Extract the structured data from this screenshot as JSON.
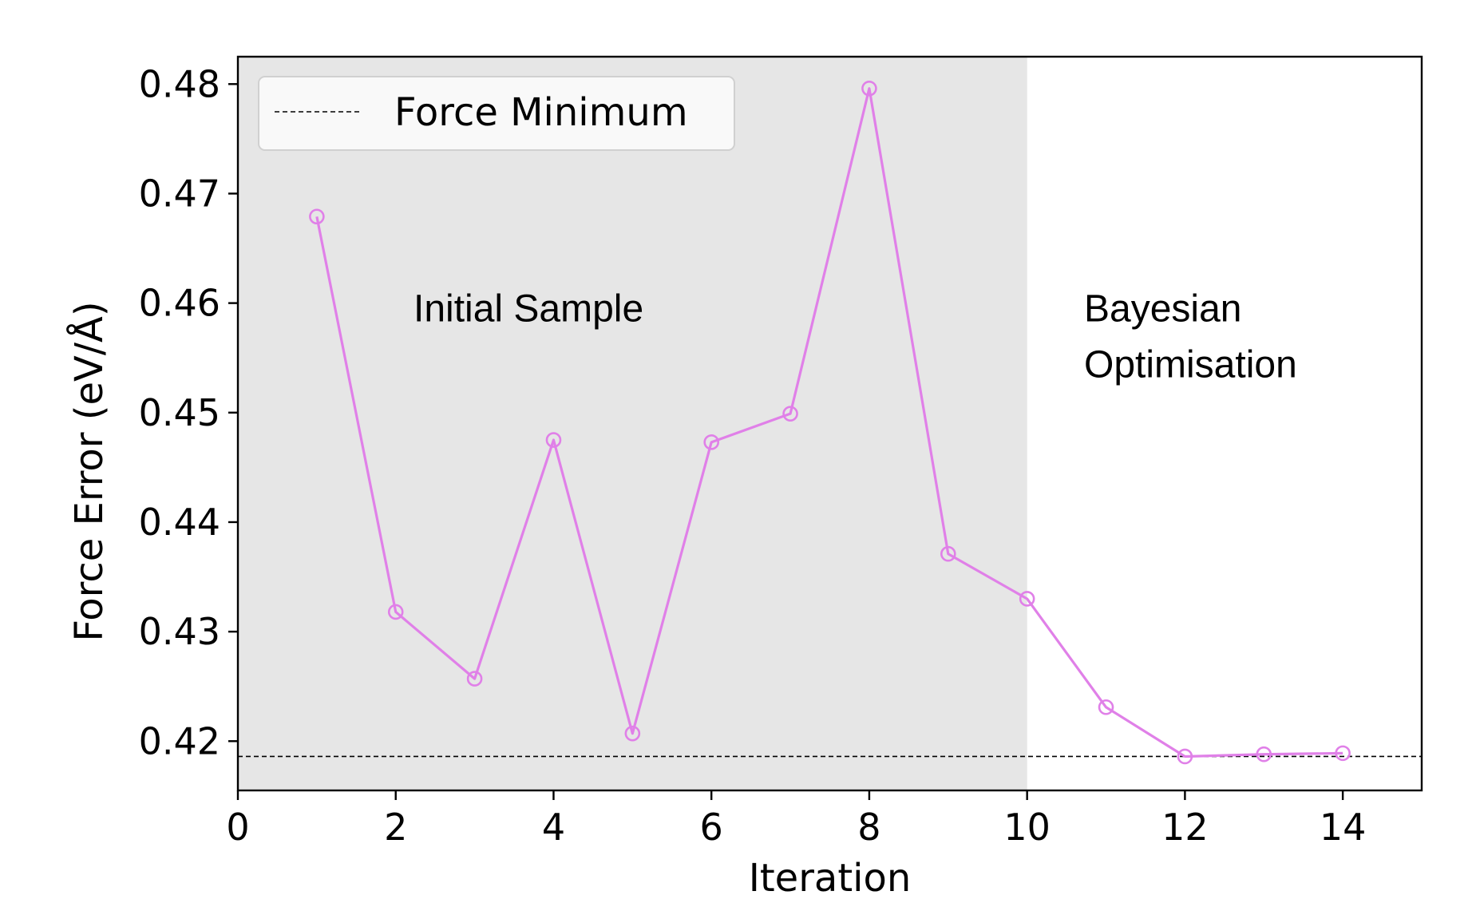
{
  "chart_data": {
    "type": "line",
    "xlabel": "Iteration",
    "ylabel": "Force Error (eV/Å)",
    "xlim": [
      0,
      15
    ],
    "ylim": [
      0.4155,
      0.4825
    ],
    "xticks": [
      0,
      2,
      4,
      6,
      8,
      10,
      12,
      14
    ],
    "xtick_labels": [
      "0",
      "2",
      "4",
      "6",
      "8",
      "10",
      "12",
      "14"
    ],
    "yticks": [
      0.42,
      0.43,
      0.44,
      0.45,
      0.46,
      0.47,
      0.48
    ],
    "ytick_labels": [
      "0.42",
      "0.43",
      "0.44",
      "0.45",
      "0.46",
      "0.47",
      "0.48"
    ],
    "grid": false,
    "legend_position": "top-left",
    "line_color": "#e080e8",
    "shaded_region": {
      "x_start": 0,
      "x_end": 10,
      "color": "#e6e6e6"
    },
    "regions": [
      {
        "label_lines": [
          "Initial Sample"
        ],
        "x": 3.8,
        "y": 0.4595
      },
      {
        "label_lines": [
          "Bayesian",
          "Optimisation"
        ],
        "x": 10.7,
        "y": 0.4595
      }
    ],
    "reference_line": {
      "label": "Force Minimum",
      "y": 0.4186,
      "style": "dashed",
      "color": "#000000"
    },
    "series": [
      {
        "x": [
          1,
          2,
          3,
          4,
          5,
          6,
          7,
          8,
          9,
          10,
          11,
          12,
          13,
          14
        ],
        "y": [
          0.4679,
          0.4318,
          0.4257,
          0.4475,
          0.4207,
          0.4473,
          0.4499,
          0.4796,
          0.4371,
          0.433,
          0.4231,
          0.4186,
          0.4188,
          0.4189
        ]
      }
    ]
  }
}
